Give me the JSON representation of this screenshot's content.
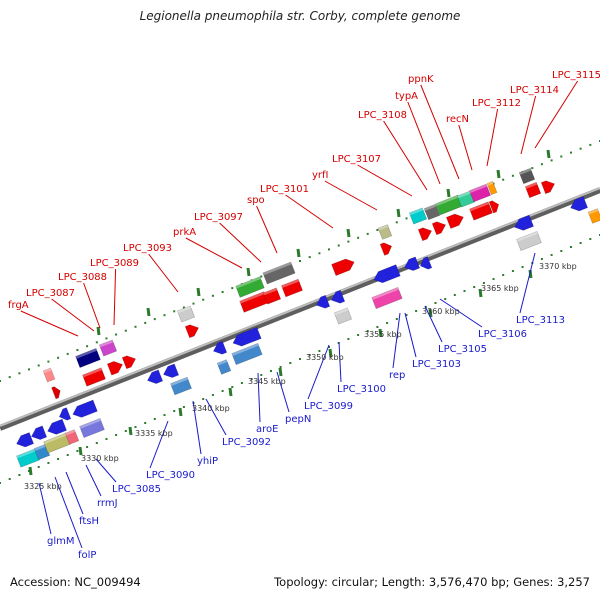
{
  "title": "Legionella pneumophila str. Corby, complete genome",
  "footer": {
    "accession": "Accession: NC_009494",
    "summary": "Topology: circular; Length: 3,576,470 bp; Genes: 3,257"
  },
  "colors": {
    "forward_label": "#d40000",
    "reverse_label": "#1a1acc",
    "backbone": "#8a8a8a",
    "tick_major": "#2b7a2b",
    "tick_minor": "#2e7d2e"
  },
  "scale_labels": [
    "3325 kbp",
    "3330 kbp",
    "3335 kbp",
    "3340 kbp",
    "3345 kbp",
    "3350 kbp",
    "3355 kbp",
    "3360 kbp",
    "3365 kbp",
    "3370 kbp"
  ],
  "forward_genes": [
    "frgA",
    "LPC_3087",
    "LPC_3088",
    "LPC_3089",
    "LPC_3093",
    "prkA",
    "LPC_3097",
    "spo",
    "LPC_3101",
    "yrfI",
    "LPC_3107",
    "LPC_3108",
    "typA",
    "ppnK",
    "recN",
    "LPC_3112",
    "LPC_3114",
    "LPC_3115"
  ],
  "reverse_genes": [
    "glmM",
    "folP",
    "ftsH",
    "rrmJ",
    "LPC_3085",
    "LPC_3090",
    "yhiP",
    "LPC_3092",
    "aroE",
    "pepN",
    "LPC_3099",
    "LPC_3100",
    "rep",
    "LPC_3103",
    "LPC_3105",
    "LPC_3106",
    "LPC_3113"
  ]
}
